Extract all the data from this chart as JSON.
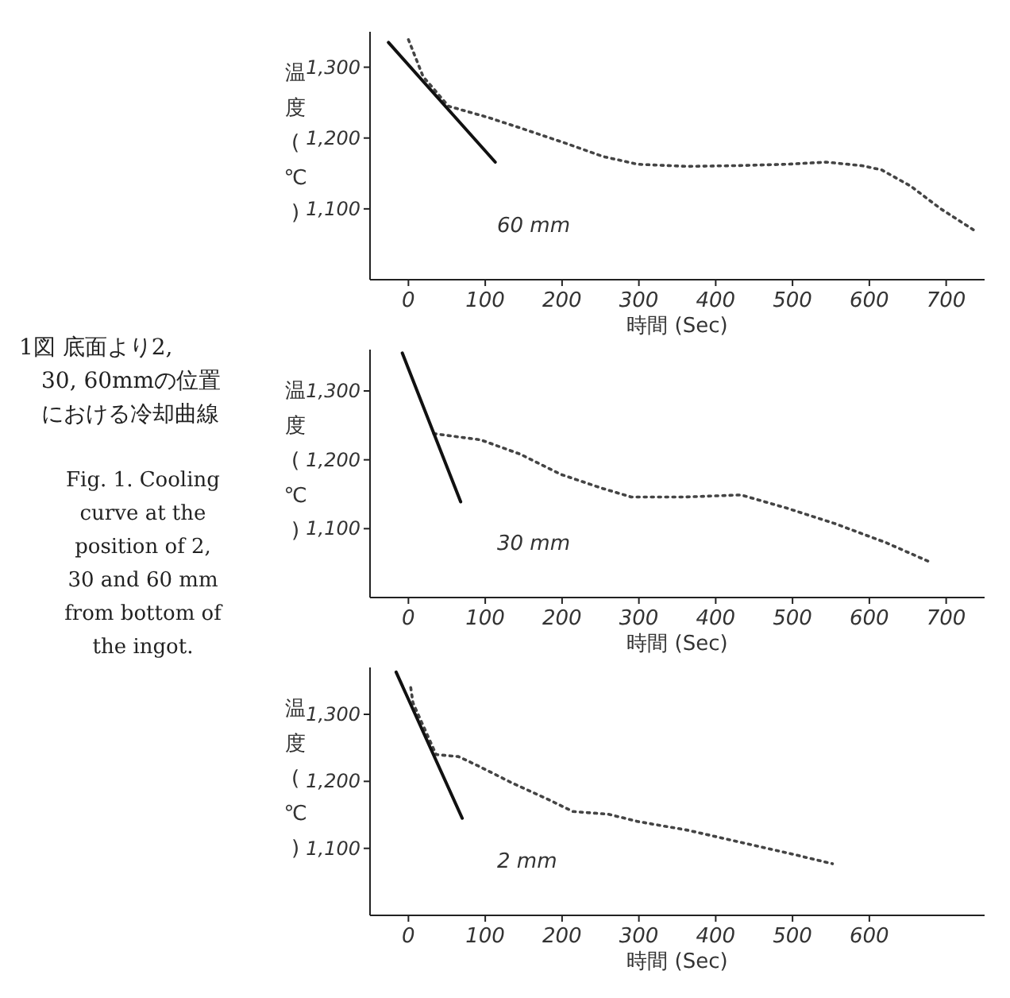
{
  "chart_data": [
    {
      "type": "line",
      "ylabel": "温度(℃)",
      "xlabel": "時間 (Sec)",
      "xlim": [
        -50,
        750
      ],
      "ylim": [
        1000,
        1350
      ],
      "xticks": [
        0,
        100,
        200,
        300,
        400,
        500,
        600,
        700
      ],
      "yticks": [
        {
          "value": 1100,
          "label": "1,100"
        },
        {
          "value": 1200,
          "label": "1,200"
        },
        {
          "value": 1300,
          "label": "1,300"
        }
      ],
      "annotations": [
        "60 mm"
      ],
      "series": [
        {
          "color": "#444444",
          "line_style": "dotted",
          "x": [
            0,
            19,
            52,
            104,
            149,
            201,
            253,
            298,
            363,
            428,
            493,
            544,
            590,
            616,
            654,
            693,
            739
          ],
          "values": [
            1339,
            1287,
            1245,
            1229,
            1213,
            1194,
            1174,
            1163,
            1160,
            1161,
            1163,
            1166,
            1161,
            1155,
            1132,
            1100,
            1068
          ]
        },
        {
          "color": "#111111",
          "line_style": "solid",
          "x": [
            -26,
            113
          ],
          "values": [
            1335,
            1166
          ]
        }
      ]
    },
    {
      "type": "line",
      "ylabel": "温度(℃)",
      "xlabel": "時間 (Sec)",
      "xlim": [
        -50,
        750
      ],
      "ylim": [
        1000,
        1360
      ],
      "xticks": [
        0,
        100,
        200,
        300,
        400,
        500,
        600,
        700
      ],
      "yticks": [
        {
          "value": 1100,
          "label": "1,100"
        },
        {
          "value": 1200,
          "label": "1,200"
        },
        {
          "value": 1300,
          "label": "1,300"
        }
      ],
      "annotations": [
        "30 mm"
      ],
      "series": [
        {
          "color": "#444444",
          "line_style": "dotted",
          "x": [
            33,
            94,
            146,
            198,
            251,
            290,
            361,
            433,
            492,
            556,
            621,
            680
          ],
          "values": [
            1238,
            1229,
            1208,
            1179,
            1159,
            1146,
            1146,
            1149,
            1130,
            1107,
            1080,
            1051
          ]
        },
        {
          "color": "#111111",
          "line_style": "solid",
          "x": [
            -8,
            68
          ],
          "values": [
            1355,
            1139
          ]
        }
      ]
    },
    {
      "type": "line",
      "ylabel": "温度(℃)",
      "xlabel": "時間 (Sec)",
      "xlim": [
        -50,
        750
      ],
      "ylim": [
        1000,
        1370
      ],
      "xticks": [
        0,
        100,
        200,
        300,
        400,
        500,
        600
      ],
      "yticks": [
        {
          "value": 1100,
          "label": "1,100"
        },
        {
          "value": 1200,
          "label": "1,200"
        },
        {
          "value": 1300,
          "label": "1,300"
        }
      ],
      "annotations": [
        "2 mm"
      ],
      "series": [
        {
          "color": "#444444",
          "line_style": "dotted",
          "x": [
            3,
            6,
            36,
            65,
            91,
            136,
            182,
            214,
            260,
            299,
            364,
            429,
            494,
            552
          ],
          "values": [
            1340,
            1317,
            1240,
            1237,
            1223,
            1197,
            1173,
            1155,
            1151,
            1140,
            1127,
            1110,
            1093,
            1077
          ]
        },
        {
          "color": "#111111",
          "line_style": "solid",
          "x": [
            -16,
            70
          ],
          "values": [
            1363,
            1145
          ]
        }
      ]
    },
    {
      "type": "other",
      "title": "1図 底面より2, 30, 60mmの位置における冷却曲線",
      "subtitle": "Fig. 1. Cooling curve at the position of 2, 30 and 60 mm from bottom of the ingot."
    }
  ]
}
